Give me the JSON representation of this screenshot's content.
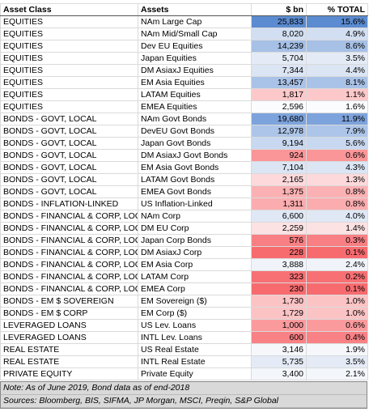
{
  "header": [
    "Asset Class",
    "Assets",
    "$ bn",
    "% TOTAL"
  ],
  "rows": [
    {
      "cells": [
        "EQUITIES",
        "NAm Large Cap",
        "25,833",
        "15.6%"
      ],
      "color": "#5b8bd0"
    },
    {
      "cells": [
        "EQUITIES",
        "NAm Mid/Small Cap",
        "8,020",
        "4.9%"
      ],
      "color": "#d2dff2"
    },
    {
      "cells": [
        "EQUITIES",
        "Dev EU Equities",
        "14,239",
        "8.6%"
      ],
      "color": "#a6c0e6"
    },
    {
      "cells": [
        "EQUITIES",
        "Japan Equities",
        "5,704",
        "3.5%"
      ],
      "color": "#e4ebf6"
    },
    {
      "cells": [
        "EQUITIES",
        "DM AsiaxJ Equities",
        "7,344",
        "4.4%"
      ],
      "color": "#dbe5f4"
    },
    {
      "cells": [
        "EQUITIES",
        "EM Asia Equities",
        "13,457",
        "8.1%"
      ],
      "color": "#a9c2e7"
    },
    {
      "cells": [
        "EQUITIES",
        "LATAM Equities",
        "1,817",
        "1.1%"
      ],
      "color": "#fcc8ca"
    },
    {
      "cells": [
        "EQUITIES",
        "EMEA Equities",
        "2,596",
        "1.6%"
      ],
      "color": "#fbfcfe"
    },
    {
      "cells": [
        "BONDS - GOVT, LOCAL",
        "NAm Govt Bonds",
        "19,680",
        "11.9%"
      ],
      "color": "#7da3dc"
    },
    {
      "cells": [
        "BONDS - GOVT, LOCAL",
        "DevEU Govt Bonds",
        "12,978",
        "7.9%"
      ],
      "color": "#adc5e8"
    },
    {
      "cells": [
        "BONDS - GOVT, LOCAL",
        "Japan Govt Bonds",
        "9,194",
        "5.6%"
      ],
      "color": "#c8d8f0"
    },
    {
      "cells": [
        "BONDS - GOVT, LOCAL",
        "DM AsiaxJ Govt Bonds",
        "924",
        "0.6%"
      ],
      "color": "#fa9598"
    },
    {
      "cells": [
        "BONDS - GOVT, LOCAL",
        "EM Asia Govt Bonds",
        "7,104",
        "4.3%"
      ],
      "color": "#dbe5f4"
    },
    {
      "cells": [
        "BONDS - GOVT, LOCAL",
        "LATAM Govt Bonds",
        "2,165",
        "1.3%"
      ],
      "color": "#fdd9db"
    },
    {
      "cells": [
        "BONDS - GOVT, LOCAL",
        "EMEA Govt Bonds",
        "1,375",
        "0.8%"
      ],
      "color": "#fbb1b3"
    },
    {
      "cells": [
        "BONDS - INFLATION-LINKED",
        "US Inflation-Linked",
        "1,311",
        "0.8%"
      ],
      "color": "#fbacaf"
    },
    {
      "cells": [
        "BONDS - FINANCIAL & CORP, LOCAL",
        "NAm Corp",
        "6,600",
        "4.0%"
      ],
      "color": "#e0e8f5"
    },
    {
      "cells": [
        "BONDS - FINANCIAL & CORP, LOCAL",
        "DM EU Corp",
        "2,259",
        "1.4%"
      ],
      "color": "#fde2e3"
    },
    {
      "cells": [
        "BONDS - FINANCIAL & CORP, LOCAL",
        "Japan Corp Bonds",
        "576",
        "0.3%"
      ],
      "color": "#f87f83"
    },
    {
      "cells": [
        "BONDS - FINANCIAL & CORP, LOCAL",
        "DM AsiaxJ Corp",
        "228",
        "0.1%"
      ],
      "color": "#f76b6f"
    },
    {
      "cells": [
        "BONDS - FINANCIAL & CORP, LOCAL",
        "EM Asia Corp",
        "3,888",
        "2.4%"
      ],
      "color": "#f0f4fa"
    },
    {
      "cells": [
        "BONDS - FINANCIAL & CORP, LOCAL",
        "LATAM Corp",
        "323",
        "0.2%"
      ],
      "color": "#f77074"
    },
    {
      "cells": [
        "BONDS - FINANCIAL & CORP, LOCAL",
        "EMEA Corp",
        "230",
        "0.1%"
      ],
      "color": "#f76b6f"
    },
    {
      "cells": [
        "BONDS - EM $ SOVEREIGN",
        "EM Sovereign ($)",
        "1,730",
        "1.0%"
      ],
      "color": "#fcc3c5"
    },
    {
      "cells": [
        "BONDS - EM $ CORP",
        "EM Corp ($)",
        "1,729",
        "1.0%"
      ],
      "color": "#fcc3c5"
    },
    {
      "cells": [
        "LEVERAGED LOANS",
        "US Lev. Loans",
        "1,000",
        "0.6%"
      ],
      "color": "#fa9a9d"
    },
    {
      "cells": [
        "LEVERAGED LOANS",
        "INTL Lev. Loans",
        "600",
        "0.4%"
      ],
      "color": "#f88185"
    },
    {
      "cells": [
        "REAL ESTATE",
        "US Real Estate",
        "3,146",
        "1.9%"
      ],
      "color": "#f5f7fb"
    },
    {
      "cells": [
        "REAL ESTATE",
        "INTL Real Estate",
        "5,735",
        "3.5%"
      ],
      "color": "#e4ebf6"
    },
    {
      "cells": [
        "PRIVATE EQUITY",
        "Private Equity",
        "3,400",
        "2.1%"
      ],
      "color": "#f3f6fb"
    }
  ],
  "notes": [
    "Note: As of June 2019, Bond data as of end-2018",
    "Sources: Bloomberg, BIS, SIFMA, JP Morgan, MSCI, Preqin, S&P Global"
  ]
}
